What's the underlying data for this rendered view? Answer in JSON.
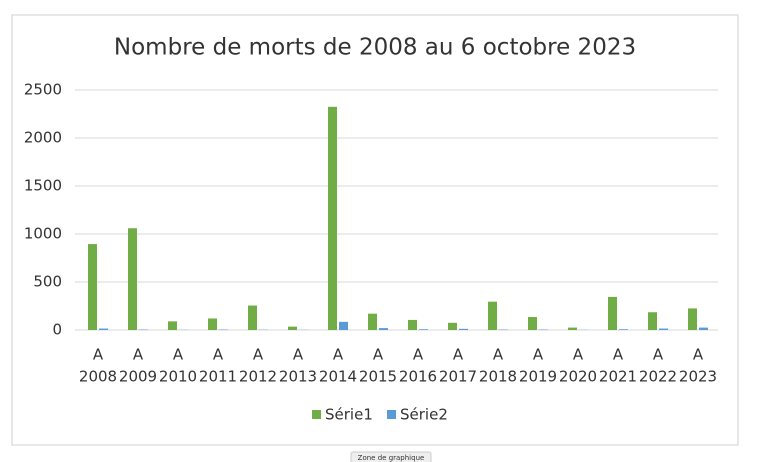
{
  "chart_data": {
    "type": "bar",
    "title": "Nombre de morts de 2008 au 6 octobre 2023",
    "category_prefixes": [
      "A",
      "A",
      "A",
      "A",
      "A",
      "A",
      "A",
      "A",
      "A",
      "A",
      "A",
      "A",
      "A",
      "A",
      "A",
      "A"
    ],
    "categories": [
      "2008",
      "2009",
      "2010",
      "2011",
      "2012",
      "2013",
      "2014",
      "2015",
      "2016",
      "2017",
      "2018",
      "2019",
      "2020",
      "2021",
      "2022",
      "2023"
    ],
    "series": [
      {
        "name": "Série1",
        "color": "#70ad47",
        "values": [
          895,
          1060,
          90,
          120,
          255,
          35,
          2325,
          170,
          105,
          75,
          295,
          135,
          25,
          345,
          185,
          225
        ]
      },
      {
        "name": "Série2",
        "color": "#5b9bd5",
        "values": [
          15,
          5,
          2,
          5,
          3,
          2,
          85,
          20,
          8,
          12,
          5,
          5,
          2,
          8,
          15,
          25
        ]
      }
    ],
    "ylim": [
      0,
      2500
    ],
    "yticks": [
      0,
      500,
      1000,
      1500,
      2000,
      2500
    ],
    "grid": true,
    "legend": "bottom",
    "tooltip": "Zone de graphique"
  }
}
